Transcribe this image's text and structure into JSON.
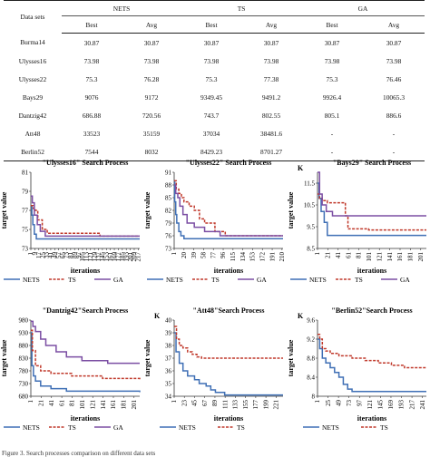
{
  "table": {
    "row_header": "Data sets",
    "groups": [
      "NETS",
      "TS",
      "GA"
    ],
    "subheaders": [
      "Best",
      "Avg",
      "Best",
      "Avg",
      "Best",
      "Avg"
    ],
    "rows": [
      [
        "Burma14",
        "30.87",
        "30.87",
        "30.87",
        "30.87",
        "30.87",
        "30.87"
      ],
      [
        "Ulysses16",
        "73.98",
        "73.98",
        "73.98",
        "73.98",
        "73.98",
        "73.98"
      ],
      [
        "Ulysses22",
        "75.3",
        "76.28",
        "75.3",
        "77.38",
        "75.3",
        "76.46"
      ],
      [
        "Bays29",
        "9076",
        "9172",
        "9349.45",
        "9491.2",
        "9926.4",
        "10065.3"
      ],
      [
        "Dantzig42",
        "686.88",
        "720.56",
        "743.7",
        "802.55",
        "805.1",
        "886.6"
      ],
      [
        "Att48",
        "33523",
        "35159",
        "37034",
        "38481.6",
        "-",
        "-"
      ],
      [
        "Berlin52",
        "7544",
        "8032",
        "8429.23",
        "8701.27",
        "-",
        "-"
      ]
    ]
  },
  "legend": {
    "nets": "NETS",
    "ts": "TS",
    "ga": "GA"
  },
  "colors": {
    "nets": "#3f6fb5",
    "ts": "#c0392b",
    "ga": "#7b4ea3",
    "axis": "#333333"
  },
  "caption": "Figure 3. Search processes comparison on different data sets",
  "chart_data": [
    {
      "type": "line",
      "title": "\"Ulysses16\" Search Process",
      "ylabel": "target value",
      "xlabel": "iterations",
      "unit_mark": "",
      "ylim": [
        73,
        81
      ],
      "yticks": [
        "73",
        "75",
        "77",
        "79",
        "81"
      ],
      "xlim": [
        1,
        220
      ],
      "xticks": [
        "1",
        "9",
        "17",
        "25",
        "33",
        "41",
        "49",
        "57",
        "65",
        "73",
        "81",
        "89",
        "97",
        "105",
        "113",
        "121",
        "129",
        "137",
        "145",
        "153",
        "161",
        "169",
        "177",
        "185",
        "193",
        "201",
        "209",
        "217"
      ],
      "xtick_values": [
        1,
        9,
        17,
        25,
        33,
        41,
        49,
        57,
        65,
        73,
        81,
        89,
        97,
        105,
        113,
        121,
        129,
        137,
        145,
        153,
        161,
        169,
        177,
        185,
        193,
        201,
        209,
        217
      ],
      "series": [
        {
          "name": "NETS",
          "style": "solid",
          "x": [
            1,
            3,
            5,
            8,
            12,
            220
          ],
          "y": [
            77.5,
            76.5,
            75.5,
            74.5,
            74.0,
            74.0
          ]
        },
        {
          "name": "TS",
          "style": "dashed",
          "x": [
            1,
            6,
            10,
            15,
            24,
            34,
            135,
            140,
            220
          ],
          "y": [
            77.5,
            77.2,
            77.0,
            76.0,
            75.0,
            74.6,
            74.6,
            74.3,
            74.3
          ]
        },
        {
          "name": "GA",
          "style": "solid",
          "x": [
            1,
            4,
            8,
            14,
            20,
            30,
            220
          ],
          "y": [
            78.5,
            77.8,
            76.5,
            75.5,
            74.8,
            74.3,
            74.3
          ]
        }
      ]
    },
    {
      "type": "line",
      "title": "\"Ulysses22\" Search Process",
      "ylabel": "target value",
      "xlabel": "iterations",
      "unit_mark": "",
      "ylim": [
        73,
        91
      ],
      "yticks": [
        "73",
        "76",
        "79",
        "82",
        "85",
        "88",
        "91"
      ],
      "xlim": [
        1,
        212
      ],
      "xticks": [
        "1",
        "20",
        "39",
        "58",
        "77",
        "96",
        "115",
        "134",
        "153",
        "172",
        "191",
        "210"
      ],
      "xtick_values": [
        1,
        20,
        39,
        58,
        77,
        96,
        115,
        134,
        153,
        172,
        191,
        210
      ],
      "series": [
        {
          "name": "NETS",
          "style": "solid",
          "x": [
            1,
            2,
            4,
            6,
            10,
            14,
            20,
            212
          ],
          "y": [
            89,
            84,
            81,
            79,
            77,
            76,
            75.3,
            75.3
          ]
        },
        {
          "name": "TS",
          "style": "dashed",
          "x": [
            1,
            5,
            10,
            15,
            20,
            30,
            40,
            50,
            60,
            80,
            100,
            212
          ],
          "y": [
            89,
            87,
            86,
            85,
            84,
            83,
            82,
            80,
            79,
            77,
            76,
            76
          ]
        },
        {
          "name": "GA",
          "style": "solid",
          "x": [
            1,
            4,
            8,
            12,
            18,
            26,
            40,
            60,
            90,
            212
          ],
          "y": [
            88,
            86,
            85,
            83,
            81,
            79,
            78,
            77,
            76,
            76
          ]
        }
      ]
    },
    {
      "type": "line",
      "title": "\"Bays29\" Search Process",
      "ylabel": "target value",
      "xlabel": "iterations",
      "unit_mark": "K",
      "ylim": [
        8.5,
        12
      ],
      "yticks": [
        "8.5",
        "9.5",
        "10.5",
        "11.5"
      ],
      "xlim": [
        1,
        212
      ],
      "xticks": [
        "1",
        "21",
        "41",
        "61",
        "81",
        "101",
        "121",
        "141",
        "161",
        "181",
        "201"
      ],
      "xtick_values": [
        1,
        21,
        41,
        61,
        81,
        101,
        121,
        141,
        161,
        181,
        201
      ],
      "series": [
        {
          "name": "NETS",
          "style": "solid",
          "x": [
            1,
            4,
            8,
            14,
            20,
            212
          ],
          "y": [
            11.5,
            10.8,
            10.2,
            9.7,
            9.1,
            9.1
          ]
        },
        {
          "name": "TS",
          "style": "dashed",
          "x": [
            1,
            5,
            10,
            20,
            40,
            55,
            60,
            100,
            212
          ],
          "y": [
            11.0,
            10.8,
            10.7,
            10.6,
            10.6,
            10.0,
            9.4,
            9.35,
            9.35
          ]
        },
        {
          "name": "GA",
          "style": "solid",
          "x": [
            1,
            5,
            10,
            18,
            30,
            212
          ],
          "y": [
            12.0,
            11.0,
            10.5,
            10.2,
            10.0,
            10.0
          ]
        }
      ]
    },
    {
      "type": "line",
      "title": "\"Dantzig42\"Search Process",
      "ylabel": "target value",
      "xlabel": "iterations",
      "unit_mark": "",
      "ylim": [
        680,
        980
      ],
      "yticks": [
        "680",
        "730",
        "780",
        "830",
        "880",
        "930",
        "980"
      ],
      "xlim": [
        1,
        212
      ],
      "xticks": [
        "1",
        "21",
        "41",
        "61",
        "81",
        "101",
        "121",
        "141",
        "161",
        "181",
        "201"
      ],
      "xtick_values": [
        1,
        21,
        41,
        61,
        81,
        101,
        121,
        141,
        161,
        181,
        201
      ],
      "series": [
        {
          "name": "NETS",
          "style": "solid",
          "x": [
            1,
            3,
            6,
            10,
            20,
            40,
            70,
            212
          ],
          "y": [
            930,
            800,
            760,
            740,
            720,
            710,
            700,
            696
          ]
        },
        {
          "name": "TS",
          "style": "dashed",
          "x": [
            1,
            4,
            10,
            20,
            40,
            80,
            140,
            212
          ],
          "y": [
            940,
            860,
            800,
            780,
            770,
            760,
            750,
            745
          ]
        },
        {
          "name": "GA",
          "style": "solid",
          "x": [
            1,
            5,
            10,
            20,
            30,
            50,
            70,
            100,
            150,
            212
          ],
          "y": [
            975,
            955,
            935,
            905,
            880,
            855,
            835,
            820,
            810,
            810
          ]
        }
      ]
    },
    {
      "type": "line",
      "title": "\"Att48\"Search Process",
      "ylabel": "target value",
      "xlabel": "iterations",
      "unit_mark": "K",
      "ylim": [
        34,
        40
      ],
      "yticks": [
        "34",
        "35",
        "36",
        "37",
        "38",
        "39",
        "40"
      ],
      "xlim": [
        1,
        236
      ],
      "xticks": [
        "1",
        "23",
        "45",
        "67",
        "89",
        "111",
        "133",
        "155",
        "177",
        "199",
        "221"
      ],
      "xtick_values": [
        1,
        23,
        45,
        67,
        89,
        111,
        133,
        155,
        177,
        199,
        221
      ],
      "series": [
        {
          "name": "NETS",
          "style": "solid",
          "x": [
            1,
            5,
            12,
            20,
            30,
            45,
            55,
            70,
            80,
            90,
            110,
            236
          ],
          "y": [
            39.0,
            37.5,
            36.6,
            36.0,
            35.6,
            35.3,
            35.0,
            34.8,
            34.5,
            34.3,
            34.1,
            34.1
          ]
        },
        {
          "name": "TS",
          "style": "dashed",
          "x": [
            1,
            6,
            12,
            20,
            30,
            40,
            50,
            60,
            236
          ],
          "y": [
            39.5,
            38.5,
            38.0,
            37.8,
            37.5,
            37.3,
            37.1,
            37.0,
            37.0
          ]
        }
      ]
    },
    {
      "type": "line",
      "title": "\"Berlin52\"Search Process",
      "ylabel": "target value",
      "xlabel": "iterations",
      "unit_mark": "K",
      "ylim": [
        8,
        9.6
      ],
      "yticks": [
        "8",
        "8.4",
        "8.8",
        "9.2",
        "9.6"
      ],
      "xlim": [
        1,
        250
      ],
      "xticks": [
        "1",
        "25",
        "49",
        "73",
        "97",
        "121",
        "145",
        "169",
        "193",
        "217",
        "241"
      ],
      "xtick_values": [
        1,
        25,
        49,
        73,
        97,
        121,
        145,
        169,
        193,
        217,
        241
      ],
      "series": [
        {
          "name": "NETS",
          "style": "solid",
          "x": [
            1,
            6,
            12,
            20,
            30,
            40,
            50,
            60,
            70,
            80,
            250
          ],
          "y": [
            9.2,
            9.0,
            8.8,
            8.7,
            8.6,
            8.5,
            8.4,
            8.25,
            8.15,
            8.1,
            8.1
          ]
        },
        {
          "name": "TS",
          "style": "dashed",
          "x": [
            1,
            6,
            12,
            20,
            30,
            50,
            80,
            110,
            140,
            170,
            200,
            250
          ],
          "y": [
            9.3,
            9.2,
            9.0,
            8.95,
            8.9,
            8.85,
            8.8,
            8.75,
            8.7,
            8.65,
            8.6,
            8.6
          ]
        }
      ]
    }
  ]
}
